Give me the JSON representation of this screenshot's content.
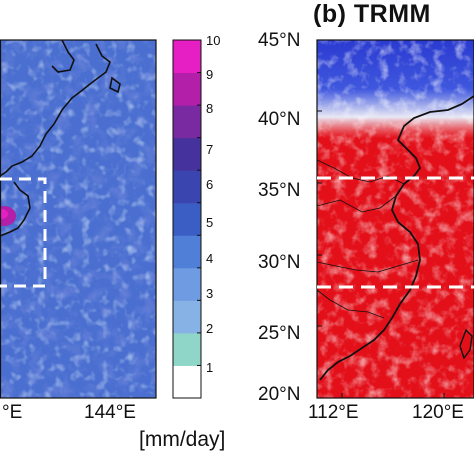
{
  "panel_b": {
    "title": "(b) TRMM",
    "lat_ticks": [
      "45°N",
      "40°N",
      "35°N",
      "30°N",
      "25°N",
      "20°N"
    ],
    "lon_ticks": [
      "112°E",
      "120°E"
    ]
  },
  "panel_a": {
    "lon_ticks": [
      "°E",
      "144°E"
    ]
  },
  "colorbar": {
    "unit": "[mm/day]",
    "ticks": [
      "10",
      "9",
      "8",
      "7",
      "6",
      "5",
      "4",
      "3",
      "2",
      "1"
    ],
    "colors": [
      "#ffffff",
      "#8fd6c9",
      "#86b2e5",
      "#6f9be2",
      "#4f7fd6",
      "#3a5ec4",
      "#3a45b0",
      "#46329c",
      "#7a2aa0",
      "#b31fa9",
      "#e51fc3"
    ]
  },
  "map_colors": {
    "panel_a_base": "#4a6fd0",
    "panel_b_base": "#e3101a",
    "panel_b_north": "#2f3fd0"
  }
}
